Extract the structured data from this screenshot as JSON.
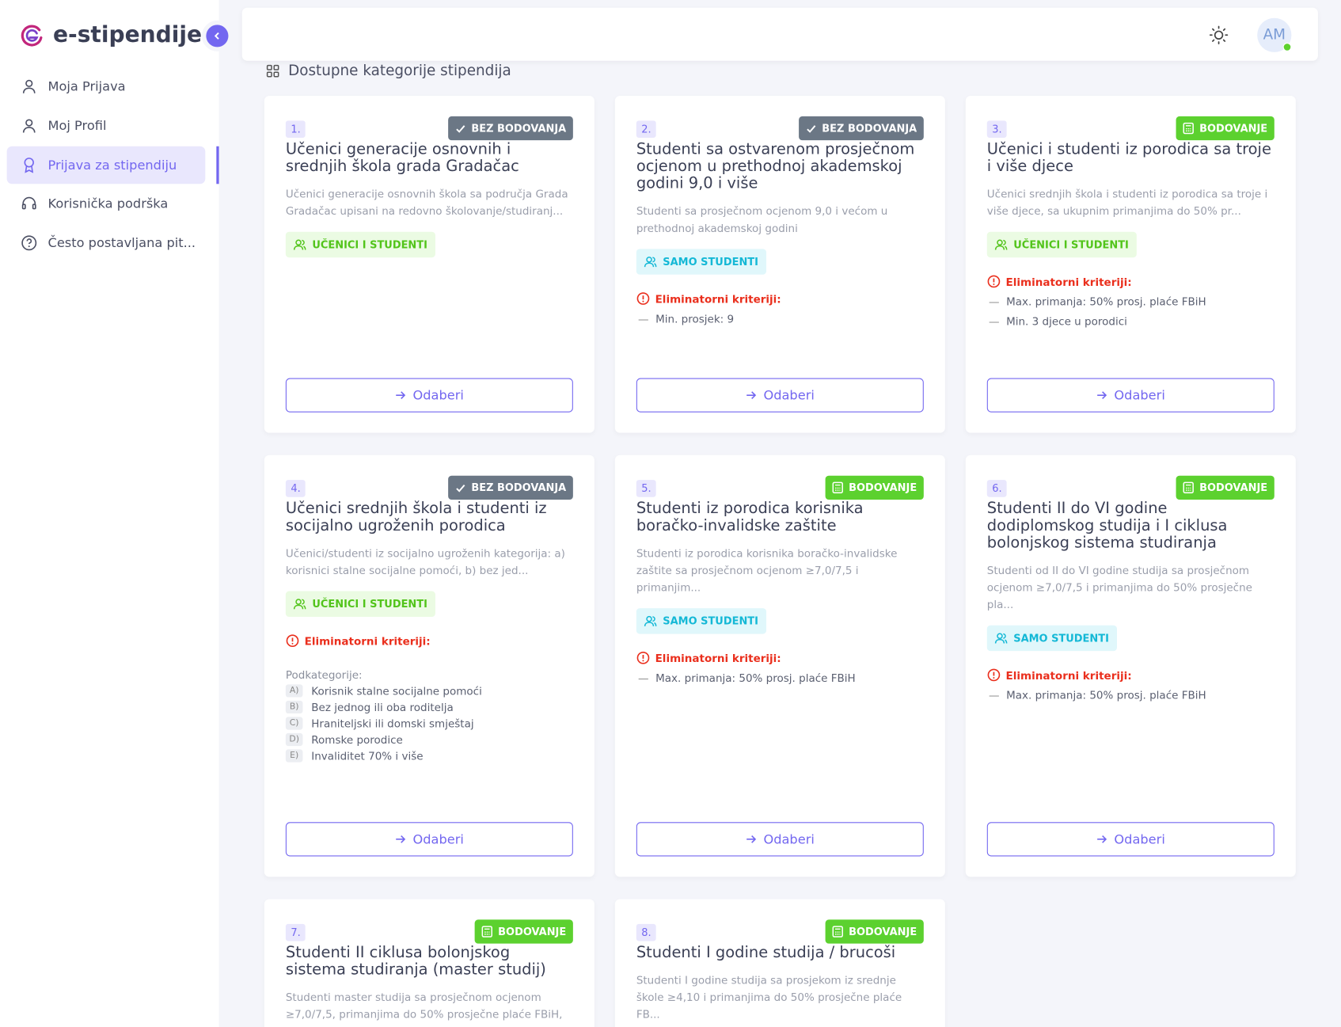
{
  "sidebar": {
    "brand": "e-stipendije",
    "nav": [
      "Moja Prijava",
      "Moj Profil",
      "Prijava za stipendiju",
      "Korisnička podrška",
      "Često postavljana pit..."
    ],
    "active": 2
  },
  "header": {
    "avatar": "AM"
  },
  "section_title": "Dostupne kategorije stipendija",
  "cards": [
    {
      "number": "1.",
      "badge": {
        "label": "BEZ BODOVANJA",
        "color": "#6b7785"
      },
      "title": "Učenici generacije osnovnih i srednjih škola grada Gradačac",
      "description": "Učenici generacije osnovnih škola sa područja Grada Gradačac upisani na redovno školovanje/studiranj...",
      "tag": {
        "label": "UČENICI I STUDENTI",
        "color": "#52c41a",
        "background": "#ebfbe3"
      },
      "button": "Odaberi"
    },
    {
      "number": "2.",
      "badge": {
        "label": "BEZ BODOVANJA",
        "color": "#6b7785"
      },
      "title": "Studenti sa ostvarenom prosječnom ocjenom u prethodnoj akademskoj godini 9,0 i više",
      "description": "Studenti sa prosječnom ocjenom 9,0 i većom u prethodnoj akademskoj godini",
      "tag": {
        "label": "SAMO STUDENTI",
        "color": "#14b8d6",
        "background": "#e0f7fb"
      },
      "criteria_label": "Eliminatorni kriteriji:",
      "criteria": [
        "Min. prosjek: 9"
      ],
      "button": "Odaberi"
    },
    {
      "number": "3.",
      "badge": {
        "label": "BODOVANJE",
        "color": "#5cd12f"
      },
      "title": "Učenici i studenti iz porodica sa troje i više djece",
      "description": "Učenici srednjih škola i studenti iz porodica sa troje i više djece, sa ukupnim primanjima do 50% pr...",
      "tag": {
        "label": "UČENICI I STUDENTI",
        "color": "#52c41a",
        "background": "#ebfbe3"
      },
      "criteria_label": "Eliminatorni kriteriji:",
      "criteria": [
        "Max. primanja: 50% prosj. plaće FBiH",
        "Min. 3 djece u porodici"
      ],
      "button": "Odaberi"
    },
    {
      "number": "4.",
      "badge": {
        "label": "BEZ BODOVANJA",
        "color": "#6b7785"
      },
      "title": "Učenici srednjih škola i studenti iz socijalno ugroženih porodica",
      "description": "Učenici/studenti iz socijalno ugroženih kategorija: a) korisnici stalne socijalne pomoći, b) bez jed...",
      "tag": {
        "label": "UČENICI I STUDENTI",
        "color": "#52c41a",
        "background": "#ebfbe3"
      },
      "criteria_label": "Eliminatorni kriteriji:",
      "criteria": [],
      "sub_label": "Podkategorije:",
      "subcategories": [
        {
          "letter": "A)",
          "text": "Korisnik stalne socijalne pomoći"
        },
        {
          "letter": "B)",
          "text": "Bez jednog ili oba roditelja"
        },
        {
          "letter": "C)",
          "text": "Hraniteljski ili domski smještaj"
        },
        {
          "letter": "D)",
          "text": "Romske porodice"
        },
        {
          "letter": "E)",
          "text": "Invaliditet 70% i više"
        }
      ],
      "button": "Odaberi"
    },
    {
      "number": "5.",
      "badge": {
        "label": "BODOVANJE",
        "color": "#5cd12f"
      },
      "title": "Studenti iz porodica korisnika boračko-invalidske zaštite",
      "description": "Studenti iz porodica korisnika boračko-invalidske zaštite sa prosječnom ocjenom ≥7,0/7,5 i primanjim...",
      "tag": {
        "label": "SAMO STUDENTI",
        "color": "#14b8d6",
        "background": "#e0f7fb"
      },
      "criteria_label": "Eliminatorni kriteriji:",
      "criteria": [
        "Max. primanja: 50% prosj. plaće FBiH"
      ],
      "button": "Odaberi"
    },
    {
      "number": "6.",
      "badge": {
        "label": "BODOVANJE",
        "color": "#5cd12f"
      },
      "title": "Studenti II do VI godine dodiplomskog studija i I ciklusa bolonjskog sistema studiranja",
      "description": "Studenti od II do VI godine studija sa prosječnom ocjenom ≥7,0/7,5 i primanjima do 50% prosječne pla...",
      "tag": {
        "label": "SAMO STUDENTI",
        "color": "#14b8d6",
        "background": "#e0f7fb"
      },
      "criteria_label": "Eliminatorni kriteriji:",
      "criteria": [
        "Max. primanja: 50% prosj. plaće FBiH"
      ],
      "button": "Odaberi"
    },
    {
      "number": "7.",
      "badge": {
        "label": "BODOVANJE",
        "color": "#5cd12f"
      },
      "title": "Studenti II ciklusa bolonjskog sistema studiranja (master studij)",
      "description": "Studenti master studija sa prosječnom ocjenom ≥7,0/7,5, primanjima do 50% prosječne plaće FBiH,"
    },
    {
      "number": "8.",
      "badge": {
        "label": "BODOVANJE",
        "color": "#5cd12f"
      },
      "title": "Studenti I godine studija / brucoši",
      "description": "Studenti I godine studija sa prosjekom iz srednje škole ≥4,10 i primanjima do 50% prosječne plaće FB..."
    }
  ]
}
